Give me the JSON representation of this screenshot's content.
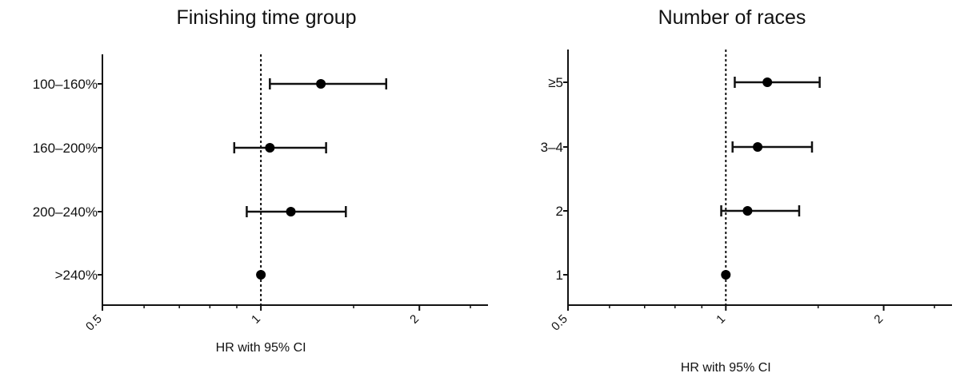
{
  "chart_data": [
    {
      "type": "forest",
      "title": "Finishing time group",
      "xlabel": "HR with 95% CI",
      "x_scale": "log2",
      "xlim": [
        0.5,
        2.7
      ],
      "xticks": [
        0.5,
        1,
        2
      ],
      "xtick_labels": [
        "0.5",
        "1",
        "2"
      ],
      "reference_line": 1,
      "categories": [
        "100–160%",
        "160–200%",
        "200–240%",
        ">240%"
      ],
      "hr": [
        1.3,
        1.04,
        1.14,
        1.0
      ],
      "ci_lower": [
        1.04,
        0.89,
        0.94,
        1.0
      ],
      "ci_upper": [
        1.73,
        1.33,
        1.45,
        1.0
      ]
    },
    {
      "type": "forest",
      "title": "Number of races",
      "xlabel": "HR with 95% CI",
      "x_scale": "log2",
      "xlim": [
        0.5,
        2.7
      ],
      "xticks": [
        0.5,
        1,
        2
      ],
      "xtick_labels": [
        "0.5",
        "1",
        "2"
      ],
      "reference_line": 1,
      "categories": [
        "≥5",
        "3–4",
        "2",
        "1"
      ],
      "hr": [
        1.2,
        1.15,
        1.1,
        1.0
      ],
      "ci_lower": [
        1.04,
        1.03,
        0.98,
        1.0
      ],
      "ci_upper": [
        1.51,
        1.46,
        1.38,
        1.0
      ]
    }
  ]
}
